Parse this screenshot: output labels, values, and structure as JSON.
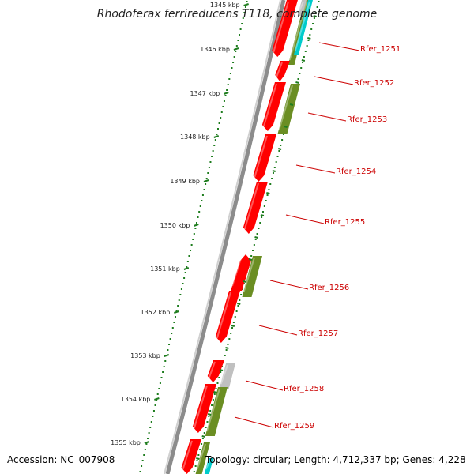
{
  "title": "Rhodoferax ferrireducens T118, complete genome",
  "footer": {
    "accession": "Accession: NC_007908",
    "topology": "Topology: circular; Length: 4,712,337 bp; Genes: 4,228"
  },
  "colors": {
    "backbone": "#8c8c8c",
    "ruler": "#1e7d1e",
    "gene_forward": "#ff0000",
    "gene_reverse": "#6b8e23",
    "gene_other": "#c0c0c0",
    "gene_rna": "#00cccc",
    "label": "#cc0000"
  },
  "ruler_ticks": [
    "1345 kbp",
    "1346 kbp",
    "1347 kbp",
    "1348 kbp",
    "1349 kbp",
    "1350 kbp",
    "1351 kbp",
    "1352 kbp",
    "1353 kbp",
    "1354 kbp",
    "1355 kbp"
  ],
  "gene_labels": [
    "Rfer_1251",
    "Rfer_1252",
    "Rfer_1253",
    "Rfer_1254",
    "Rfer_1255",
    "Rfer_1256",
    "Rfer_1257",
    "Rfer_1258",
    "Rfer_1259"
  ]
}
